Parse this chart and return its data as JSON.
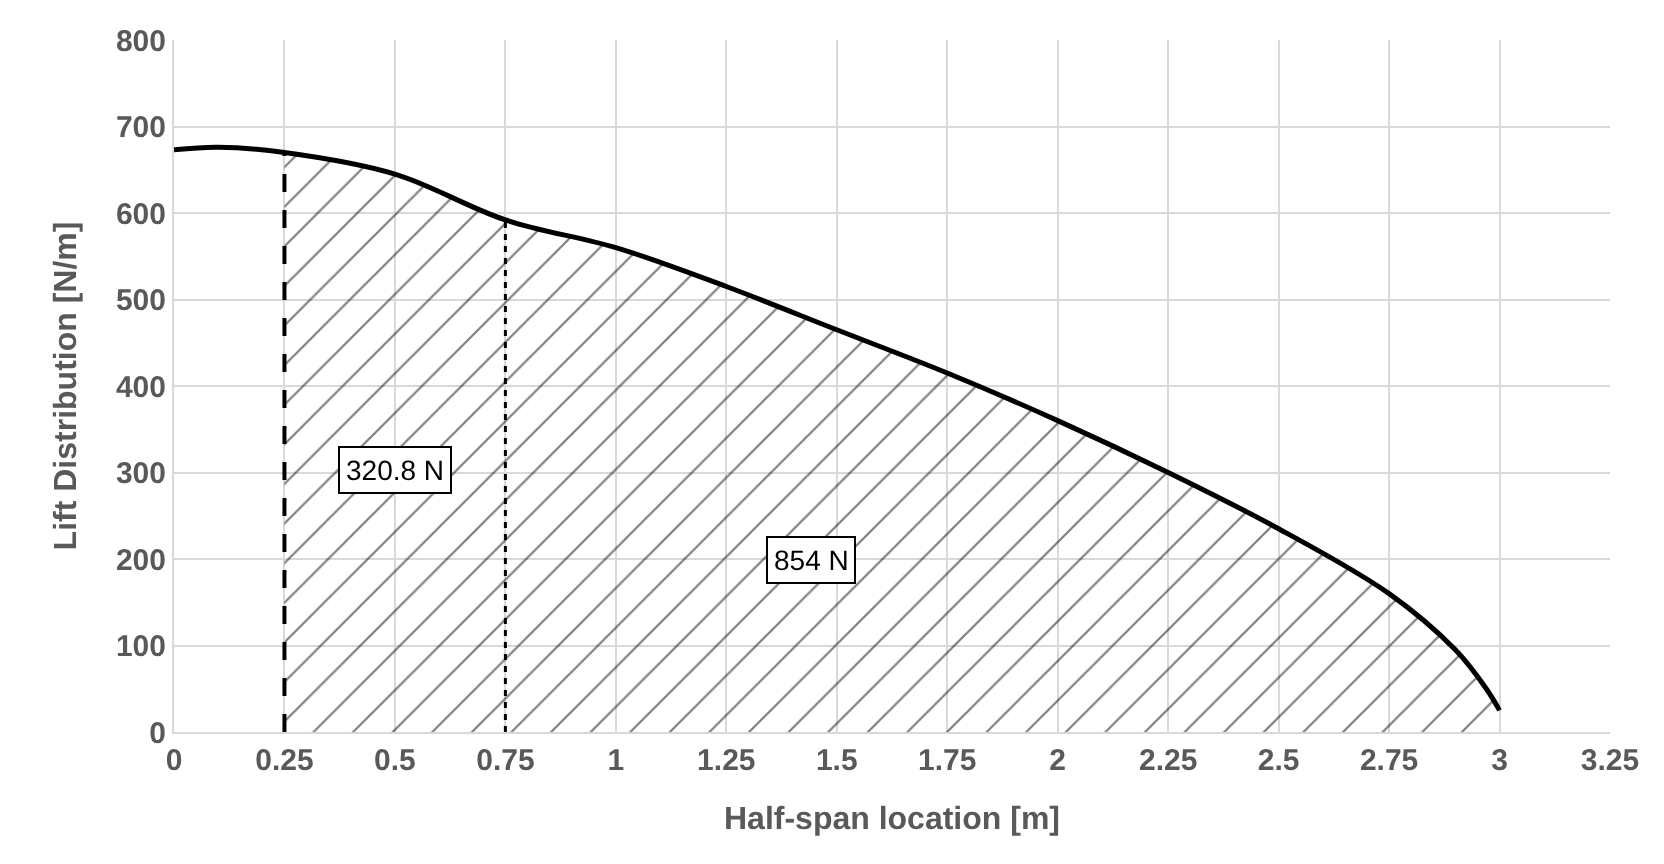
{
  "chart_data": {
    "type": "line",
    "xlabel": "Half-span location [m]",
    "ylabel": "Lift Distribution [N/m]",
    "series": [
      {
        "color": "#000000",
        "x": [
          0,
          0.1,
          0.25,
          0.5,
          0.75,
          1,
          1.25,
          1.5,
          1.75,
          2,
          2.25,
          2.5,
          2.75,
          2.9,
          2.97,
          3
        ],
        "values": [
          673,
          676,
          670,
          645,
          592,
          560,
          515,
          465,
          415,
          360,
          300,
          235,
          160,
          95,
          50,
          25
        ]
      },
      {
        "type": "area",
        "color": "#000000",
        "x": [
          0.25,
          0.5,
          0.75,
          1,
          1.25,
          1.5,
          1.75,
          2,
          2.25,
          2.5,
          2.75,
          2.9,
          2.97,
          3
        ],
        "values": [
          670,
          645,
          592,
          560,
          515,
          465,
          415,
          360,
          300,
          235,
          160,
          95,
          50,
          25
        ]
      }
    ],
    "xlim": [
      0,
      3.25
    ],
    "xticks": [
      0,
      0.25,
      0.5,
      0.75,
      1,
      1.25,
      1.5,
      1.75,
      2,
      2.25,
      2.5,
      2.75,
      3,
      3.25
    ],
    "ylim": [
      0,
      800
    ],
    "yticks": [
      0,
      100,
      200,
      300,
      400,
      500,
      600,
      700,
      800
    ],
    "ref_lines": [
      {
        "axis": "x",
        "value": 0.25,
        "line_style": "dashed",
        "color": "#000000"
      },
      {
        "axis": "x",
        "value": 0.75,
        "line_style": "dotted",
        "color": "#000000"
      }
    ],
    "annotations": [
      "320.8 N",
      "854 N"
    ],
    "grid": true
  }
}
